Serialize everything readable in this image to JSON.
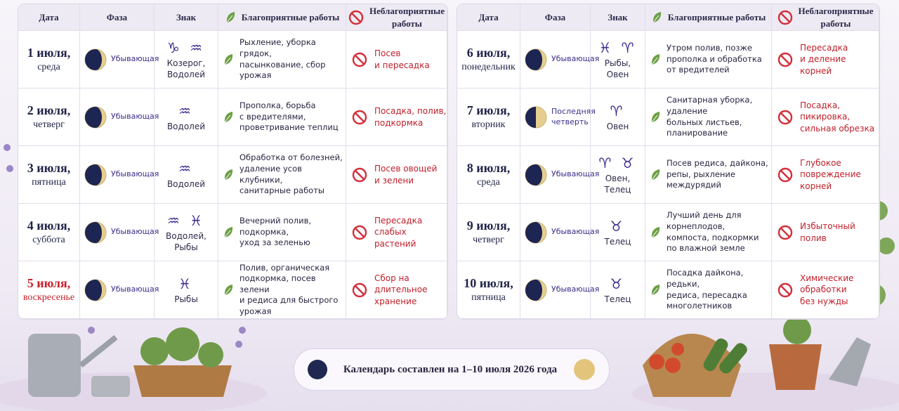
{
  "tables": [
    {
      "header": [
        "Дата",
        "Фаза",
        "Знак",
        "Благоприятные работы",
        "Неблагоприятные\nработы"
      ],
      "rows": [
        {
          "day": "1 июля,",
          "weekday": "среда",
          "phase": "Убывающая",
          "signs": "♑ ♒",
          "sign_names": "Козерог,\nВодолей",
          "good": "Рыхление, уборка грядок,\nпасынкование, сбор урожая",
          "bad": "Посев\nи пересадка"
        },
        {
          "day": "2 июля,",
          "weekday": "четверг",
          "phase": "Убывающая",
          "signs": "♒",
          "sign_names": "Водолей",
          "good": "Прополка, борьба\nс вредителями,\nпроветривание теплиц",
          "bad": "Посадка, полив,\nподкормка"
        },
        {
          "day": "3 июля,",
          "weekday": "пятница",
          "phase": "Убывающая",
          "signs": "♒",
          "sign_names": "Водолей",
          "good": "Обработка от болезней,\nудаление усов клубники,\nсанитарные работы",
          "bad": "Посев овощей\nи зелени"
        },
        {
          "day": "4 июля,",
          "weekday": "суббота",
          "phase": "Убывающая",
          "signs": "♒ ♓",
          "sign_names": "Водолей,\nРыбы",
          "good": "Вечерний полив, подкормка,\nуход за зеленью",
          "bad": "Пересадка\nслабых растений"
        },
        {
          "day": "5 июля,",
          "weekday": "воскресенье",
          "date_color": "#c8202a",
          "phase": "Убывающая",
          "signs": "♓",
          "sign_names": "Рыбы",
          "good": "Полив, органическая\nподкормка, посев зелени\nи редиса для быстрого урожая",
          "bad": "Сбор на длительное\nхранение"
        }
      ]
    },
    {
      "header": [
        "Дата",
        "Фаза",
        "Знак",
        "Благоприятные работы",
        "Неблагоприятные\nработы"
      ],
      "rows": [
        {
          "day": "6 июля,",
          "weekday": "понедельник",
          "phase": "Убывающая",
          "signs": "♓ ♈",
          "sign_names": "Рыбы,\nОвен",
          "good": "Утром полив, позже\nпрополка и обработка\nот вредителей",
          "bad": "Пересадка\nи деление корней"
        },
        {
          "day": "7 июля,",
          "weekday": "вторник",
          "phase": "Последняя\nчетверть",
          "signs": "♈",
          "sign_names": "Овен",
          "good": "Санитарная уборка, удаление\nбольных листьев,\nпланирование",
          "bad": "Посадка, пикировка,\nсильная обрезка"
        },
        {
          "day": "8 июля,",
          "weekday": "среда",
          "phase": "Убывающая",
          "signs": "♈ ♉",
          "sign_names": "Овен,\nТелец",
          "good": "Посев редиса, дайкона,\nрепы, рыхление\nмеждурядий",
          "bad": "Глубокое\nповреждение корней"
        },
        {
          "day": "9 июля,",
          "weekday": "четверг",
          "phase": "Убывающая",
          "signs": "♉",
          "sign_names": "Телец",
          "good": "Лучший день для корнеплодов,\nкомпоста, подкормки\nпо влажной земле",
          "bad": "Избыточный\nполив"
        },
        {
          "day": "10 июля,",
          "weekday": "пятница",
          "phase": "Убывающая",
          "signs": "♉",
          "sign_names": "Телец",
          "good": "Посадка дайкона, редьки,\nредиса, пересадка\nмноголетников",
          "bad": "Химические\nобработки\nбез нужды"
        }
      ]
    }
  ],
  "footer": "Календарь составлен на 1–10 июля 2026 года"
}
